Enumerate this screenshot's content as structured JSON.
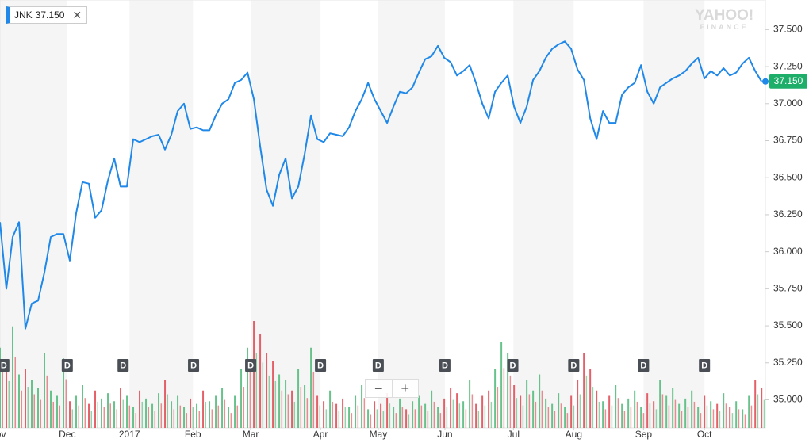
{
  "chart_data": {
    "type": "line",
    "series": [
      {
        "name": "JNK",
        "color": "#1f88e8",
        "values": [
          36.2,
          35.75,
          36.1,
          36.2,
          35.48,
          35.65,
          35.67,
          35.86,
          36.1,
          36.12,
          36.12,
          35.94,
          36.26,
          36.47,
          36.46,
          36.23,
          36.28,
          36.48,
          36.63,
          36.44,
          36.44,
          36.76,
          36.74,
          36.76,
          36.78,
          36.79,
          36.69,
          36.79,
          36.95,
          37.0,
          36.83,
          36.84,
          36.82,
          36.82,
          36.92,
          37.0,
          37.03,
          37.14,
          37.16,
          37.21,
          37.03,
          36.71,
          36.42,
          36.31,
          36.52,
          36.63,
          36.36,
          36.44,
          36.66,
          36.92,
          36.76,
          36.74,
          36.8,
          36.79,
          36.78,
          36.84,
          36.95,
          37.03,
          37.14,
          37.03,
          36.95,
          36.87,
          36.98,
          37.08,
          37.07,
          37.11,
          37.21,
          37.3,
          37.32,
          37.39,
          37.31,
          37.28,
          37.19,
          37.22,
          37.26,
          37.14,
          37.0,
          36.9,
          37.08,
          37.14,
          37.19,
          36.98,
          36.87,
          36.98,
          37.16,
          37.22,
          37.31,
          37.37,
          37.4,
          37.42,
          37.37,
          37.23,
          37.16,
          36.9,
          36.76,
          36.95,
          36.87,
          36.87,
          37.06,
          37.11,
          37.14,
          37.26,
          37.08,
          37.0,
          37.11,
          37.14,
          37.17,
          37.19,
          37.22,
          37.27,
          37.31,
          37.17,
          37.22,
          37.19,
          37.24,
          37.19,
          37.21,
          37.27,
          37.31,
          37.22,
          37.15
        ]
      }
    ],
    "last_value": {
      "value": 37.15,
      "label": "37.150"
    },
    "volume": {
      "up_color": "#4cb877",
      "down_color": "#e0454f",
      "ylim": [
        0,
        40
      ],
      "values": [
        30,
        25,
        38,
        20,
        22,
        18,
        15,
        28,
        14,
        12,
        26,
        10,
        12,
        16,
        9,
        14,
        11,
        13,
        10,
        15,
        12,
        8,
        14,
        11,
        9,
        13,
        18,
        10,
        12,
        8,
        11,
        9,
        14,
        10,
        12,
        15,
        8,
        12,
        22,
        30,
        40,
        35,
        28,
        25,
        20,
        18,
        14,
        22,
        16,
        30,
        12,
        10,
        14,
        9,
        11,
        8,
        12,
        16,
        7,
        10,
        9,
        13,
        8,
        11,
        7,
        10,
        12,
        9,
        14,
        8,
        11,
        15,
        13,
        10,
        18,
        9,
        12,
        14,
        22,
        32,
        28,
        16,
        12,
        18,
        14,
        20,
        11,
        9,
        13,
        8,
        12,
        18,
        28,
        22,
        14,
        10,
        12,
        16,
        9,
        11,
        14,
        8,
        13,
        10,
        18,
        12,
        15,
        9,
        11,
        14,
        8,
        12,
        10,
        9,
        13,
        8,
        10,
        7,
        12,
        18,
        15
      ]
    },
    "dividend_markers": {
      "label": "D",
      "x": [
        0.6,
        10.6,
        19.4,
        30.5,
        39.5,
        50.5,
        59.6,
        70.1,
        80.8,
        90.4,
        101.4,
        111.0
      ]
    },
    "xlim": [
      0,
      120.6
    ],
    "xticks": [
      {
        "value": -0.4,
        "label": "Nov"
      },
      {
        "value": 10.6,
        "label": "Dec"
      },
      {
        "value": 20.4,
        "label": "2017"
      },
      {
        "value": 30.4,
        "label": "Feb"
      },
      {
        "value": 39.5,
        "label": "Mar"
      },
      {
        "value": 50.5,
        "label": "Apr"
      },
      {
        "value": 59.6,
        "label": "May"
      },
      {
        "value": 70.1,
        "label": "Jun"
      },
      {
        "value": 80.9,
        "label": "Jul"
      },
      {
        "value": 90.4,
        "label": "Aug"
      },
      {
        "value": 101.4,
        "label": "Sep"
      },
      {
        "value": 111.0,
        "label": "Oct"
      }
    ],
    "ylim": [
      34.81,
      37.7
    ],
    "yticks": [
      {
        "value": 37.5,
        "label": "37.500"
      },
      {
        "value": 37.25,
        "label": "37.250"
      },
      {
        "value": 37,
        "label": "37.000"
      },
      {
        "value": 36.75,
        "label": "36.750"
      },
      {
        "value": 36.5,
        "label": "36.500"
      },
      {
        "value": 36.25,
        "label": "36.250"
      },
      {
        "value": 36,
        "label": "36.000"
      },
      {
        "value": 35.75,
        "label": "35.750"
      },
      {
        "value": 35.5,
        "label": "35.500"
      },
      {
        "value": 35.25,
        "label": "35.250"
      },
      {
        "value": 35,
        "label": "35.000"
      }
    ],
    "watermark": [
      "YAHOO!",
      "FINANCE"
    ]
  }
}
